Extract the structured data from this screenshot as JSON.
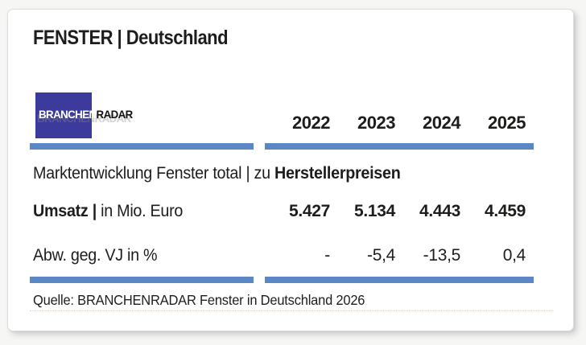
{
  "header": {
    "title": "FENSTER | Deutschland"
  },
  "logo": {
    "text_primary": "BRANCHEN",
    "text_secondary": "RADAR",
    "ghost_text": "BRANCHENRADAR"
  },
  "table": {
    "years": [
      "2022",
      "2023",
      "2024",
      "2025"
    ],
    "section_title": {
      "regular": "Marktentwicklung Fenster total | zu ",
      "bold": "Herstellerpreisen"
    },
    "rows": [
      {
        "label_bold": "Umsatz |",
        "label_rest": " in Mio. Euro",
        "values": [
          "5.427",
          "5.134",
          "4.443",
          "4.459"
        ]
      },
      {
        "label_bold": "",
        "label_rest": "Abw. geg. VJ in %",
        "values": [
          "-",
          "-5,4",
          "-13,5",
          "0,4"
        ]
      }
    ]
  },
  "footer": {
    "source": "Quelle: BRANCHENRADAR Fenster in Deutschland 2026"
  },
  "colors": {
    "accent_bar": "#5b87c5",
    "logo_square": "#3c3b9c",
    "text": "#1d1d1b"
  },
  "chart_data": {
    "type": "table",
    "title": "FENSTER | Deutschland",
    "subtitle": "Marktentwicklung Fenster total | zu Herstellerpreisen",
    "categories": [
      "2022",
      "2023",
      "2024",
      "2025"
    ],
    "series": [
      {
        "name": "Umsatz | in Mio. Euro",
        "values": [
          5427,
          5134,
          4443,
          4459
        ]
      },
      {
        "name": "Abw. geg. VJ in %",
        "values": [
          null,
          -5.4,
          -13.5,
          0.4
        ]
      }
    ],
    "source": "Quelle: BRANCHENRADAR Fenster in Deutschland 2026"
  }
}
